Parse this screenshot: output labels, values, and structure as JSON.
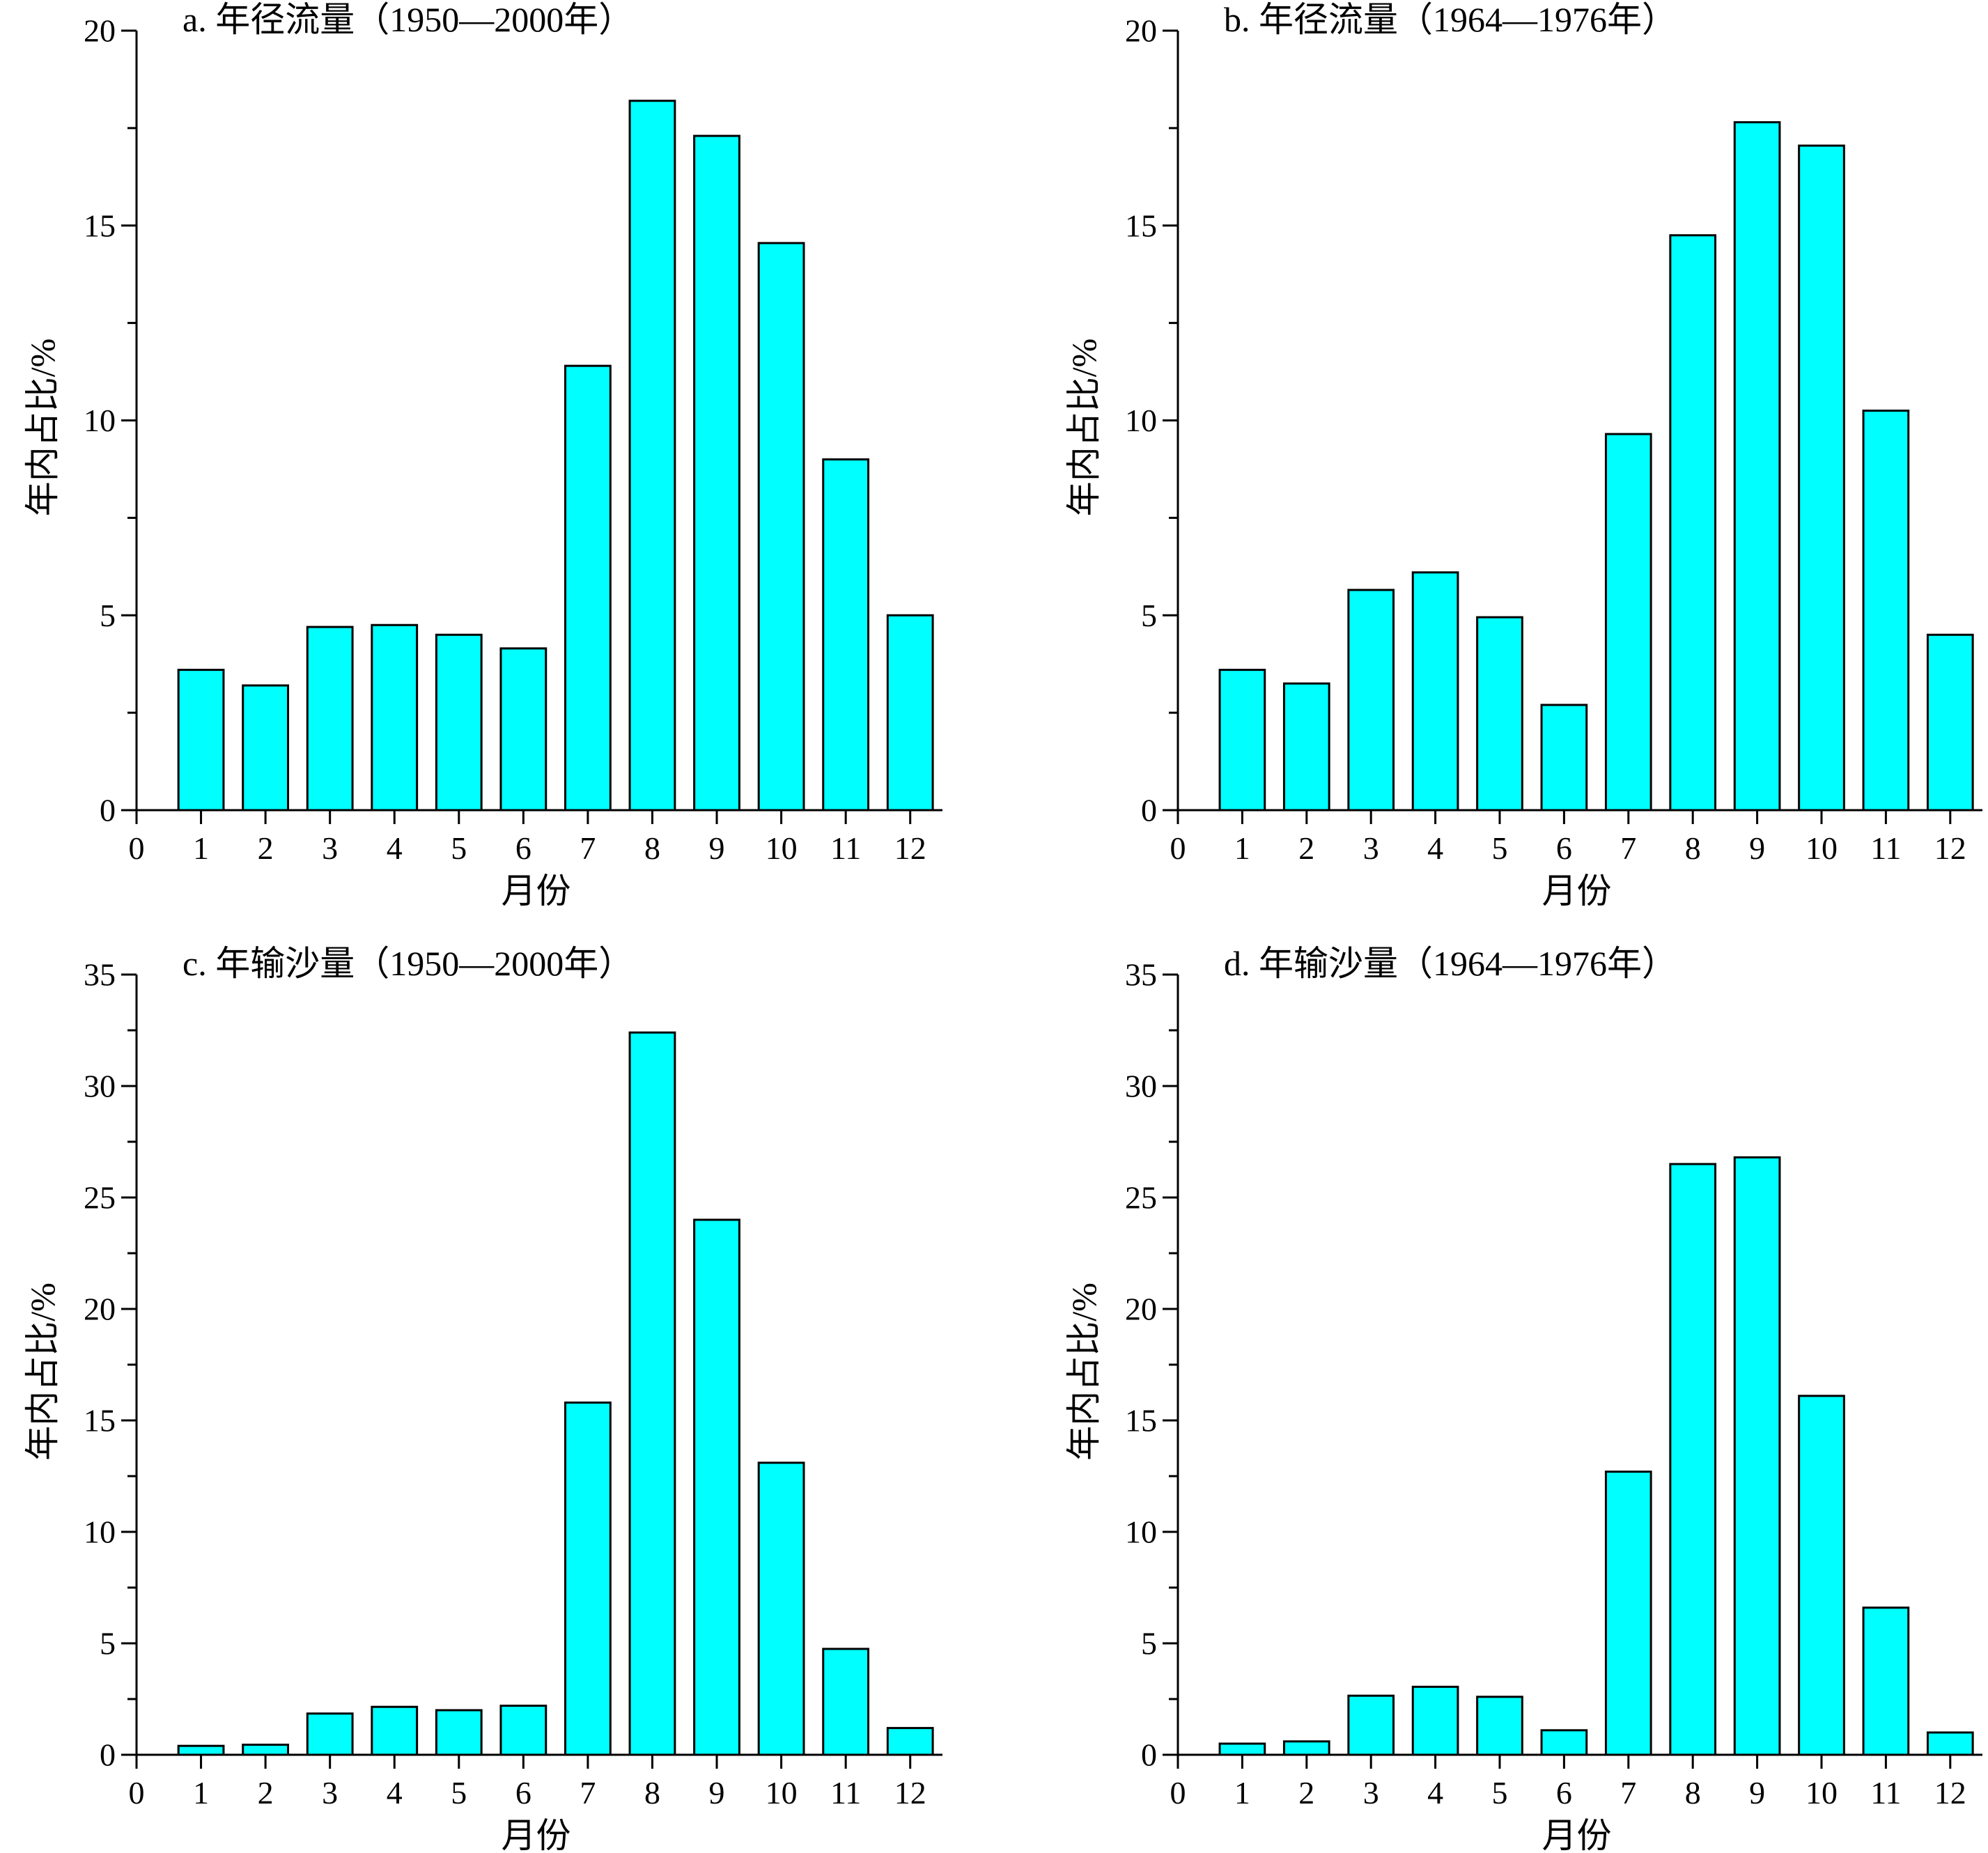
{
  "colors": {
    "bar": "#00ffff",
    "bar_edge": "#000000",
    "axis": "#000000"
  },
  "chart_data": [
    {
      "type": "bar",
      "title": "a. 年径流量（1950—2000年）",
      "xlabel": "月份",
      "ylabel": "年内占比/%",
      "categories": [
        1,
        2,
        3,
        4,
        5,
        6,
        7,
        8,
        9,
        10,
        11,
        12
      ],
      "values": [
        3.6,
        3.2,
        4.7,
        4.75,
        4.5,
        4.15,
        11.4,
        18.2,
        17.3,
        14.55,
        9.0,
        5.0
      ],
      "xlim": [
        0,
        12.5
      ],
      "ylim": [
        0,
        20
      ],
      "yticks": [
        0,
        5,
        10,
        15,
        20
      ],
      "ymajor_tick_step": 5,
      "yminor_tick_step": 2.5,
      "grid": false,
      "legend": "none"
    },
    {
      "type": "bar",
      "title": "b. 年径流量（1964—1976年）",
      "xlabel": "月份",
      "ylabel": "年内占比/%",
      "categories": [
        1,
        2,
        3,
        4,
        5,
        6,
        7,
        8,
        9,
        10,
        11,
        12
      ],
      "values": [
        3.6,
        3.25,
        5.65,
        6.1,
        4.95,
        2.7,
        9.65,
        14.75,
        17.65,
        17.05,
        10.25,
        4.5
      ],
      "xlim": [
        0,
        12.5
      ],
      "ylim": [
        0,
        20
      ],
      "yticks": [
        0,
        5,
        10,
        15,
        20
      ],
      "ymajor_tick_step": 5,
      "yminor_tick_step": 2.5,
      "grid": false,
      "legend": "none"
    },
    {
      "type": "bar",
      "title": "c. 年输沙量（1950—2000年）",
      "xlabel": "月份",
      "ylabel": "年内占比/%",
      "categories": [
        1,
        2,
        3,
        4,
        5,
        6,
        7,
        8,
        9,
        10,
        11,
        12
      ],
      "values": [
        0.4,
        0.45,
        1.85,
        2.15,
        2.0,
        2.2,
        15.8,
        32.4,
        24.0,
        13.1,
        4.75,
        1.2
      ],
      "xlim": [
        0,
        12.5
      ],
      "ylim": [
        0,
        35
      ],
      "yticks": [
        0,
        5,
        10,
        15,
        20,
        25,
        30,
        35
      ],
      "ymajor_tick_step": 5,
      "yminor_tick_step": 2.5,
      "grid": false,
      "legend": "none"
    },
    {
      "type": "bar",
      "title": "d. 年输沙量（1964—1976年）",
      "xlabel": "月份",
      "ylabel": "年内占比/%",
      "categories": [
        1,
        2,
        3,
        4,
        5,
        6,
        7,
        8,
        9,
        10,
        11,
        12
      ],
      "values": [
        0.5,
        0.6,
        2.65,
        3.05,
        2.6,
        1.1,
        12.7,
        26.5,
        26.8,
        16.1,
        6.6,
        1.0
      ],
      "xlim": [
        0,
        12.5
      ],
      "ylim": [
        0,
        35
      ],
      "yticks": [
        0,
        5,
        10,
        15,
        20,
        25,
        30,
        35
      ],
      "ymajor_tick_step": 5,
      "yminor_tick_step": 2.5,
      "grid": false,
      "legend": "none"
    }
  ]
}
